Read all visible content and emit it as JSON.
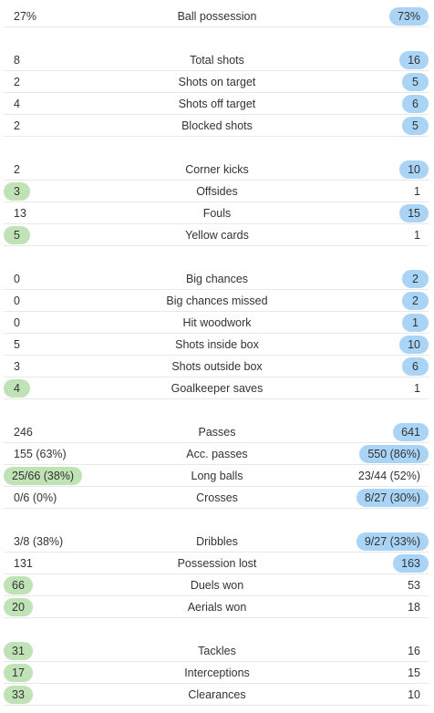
{
  "colors": {
    "home_highlight": "#bfe3b4",
    "away_highlight": "#a9d4f5",
    "divider": "#e8e8e8",
    "text": "#333333"
  },
  "groups": [
    {
      "rows": [
        {
          "label": "Ball possession",
          "home": "27%",
          "away": "73%",
          "highlight": "away"
        }
      ]
    },
    {
      "rows": [
        {
          "label": "Total shots",
          "home": "8",
          "away": "16",
          "highlight": "away"
        },
        {
          "label": "Shots on target",
          "home": "2",
          "away": "5",
          "highlight": "away"
        },
        {
          "label": "Shots off target",
          "home": "4",
          "away": "6",
          "highlight": "away"
        },
        {
          "label": "Blocked shots",
          "home": "2",
          "away": "5",
          "highlight": "away"
        }
      ]
    },
    {
      "rows": [
        {
          "label": "Corner kicks",
          "home": "2",
          "away": "10",
          "highlight": "away"
        },
        {
          "label": "Offsides",
          "home": "3",
          "away": "1",
          "highlight": "home"
        },
        {
          "label": "Fouls",
          "home": "13",
          "away": "15",
          "highlight": "away"
        },
        {
          "label": "Yellow cards",
          "home": "5",
          "away": "1",
          "highlight": "home"
        }
      ]
    },
    {
      "rows": [
        {
          "label": "Big chances",
          "home": "0",
          "away": "2",
          "highlight": "away"
        },
        {
          "label": "Big chances missed",
          "home": "0",
          "away": "2",
          "highlight": "away"
        },
        {
          "label": "Hit woodwork",
          "home": "0",
          "away": "1",
          "highlight": "away"
        },
        {
          "label": "Shots inside box",
          "home": "5",
          "away": "10",
          "highlight": "away"
        },
        {
          "label": "Shots outside box",
          "home": "3",
          "away": "6",
          "highlight": "away"
        },
        {
          "label": "Goalkeeper saves",
          "home": "4",
          "away": "1",
          "highlight": "home"
        }
      ]
    },
    {
      "rows": [
        {
          "label": "Passes",
          "home": "246",
          "away": "641",
          "highlight": "away"
        },
        {
          "label": "Acc. passes",
          "home": "155 (63%)",
          "away": "550 (86%)",
          "highlight": "away"
        },
        {
          "label": "Long balls",
          "home": "25/66 (38%)",
          "away": "23/44 (52%)",
          "highlight": "home"
        },
        {
          "label": "Crosses",
          "home": "0/6 (0%)",
          "away": "8/27 (30%)",
          "highlight": "away"
        }
      ]
    },
    {
      "rows": [
        {
          "label": "Dribbles",
          "home": "3/8 (38%)",
          "away": "9/27 (33%)",
          "highlight": "away"
        },
        {
          "label": "Possession lost",
          "home": "131",
          "away": "163",
          "highlight": "away"
        },
        {
          "label": "Duels won",
          "home": "66",
          "away": "53",
          "highlight": "home"
        },
        {
          "label": "Aerials won",
          "home": "20",
          "away": "18",
          "highlight": "home"
        }
      ]
    },
    {
      "rows": [
        {
          "label": "Tackles",
          "home": "31",
          "away": "16",
          "highlight": "home"
        },
        {
          "label": "Interceptions",
          "home": "17",
          "away": "15",
          "highlight": "home"
        },
        {
          "label": "Clearances",
          "home": "33",
          "away": "10",
          "highlight": "home"
        }
      ]
    }
  ]
}
